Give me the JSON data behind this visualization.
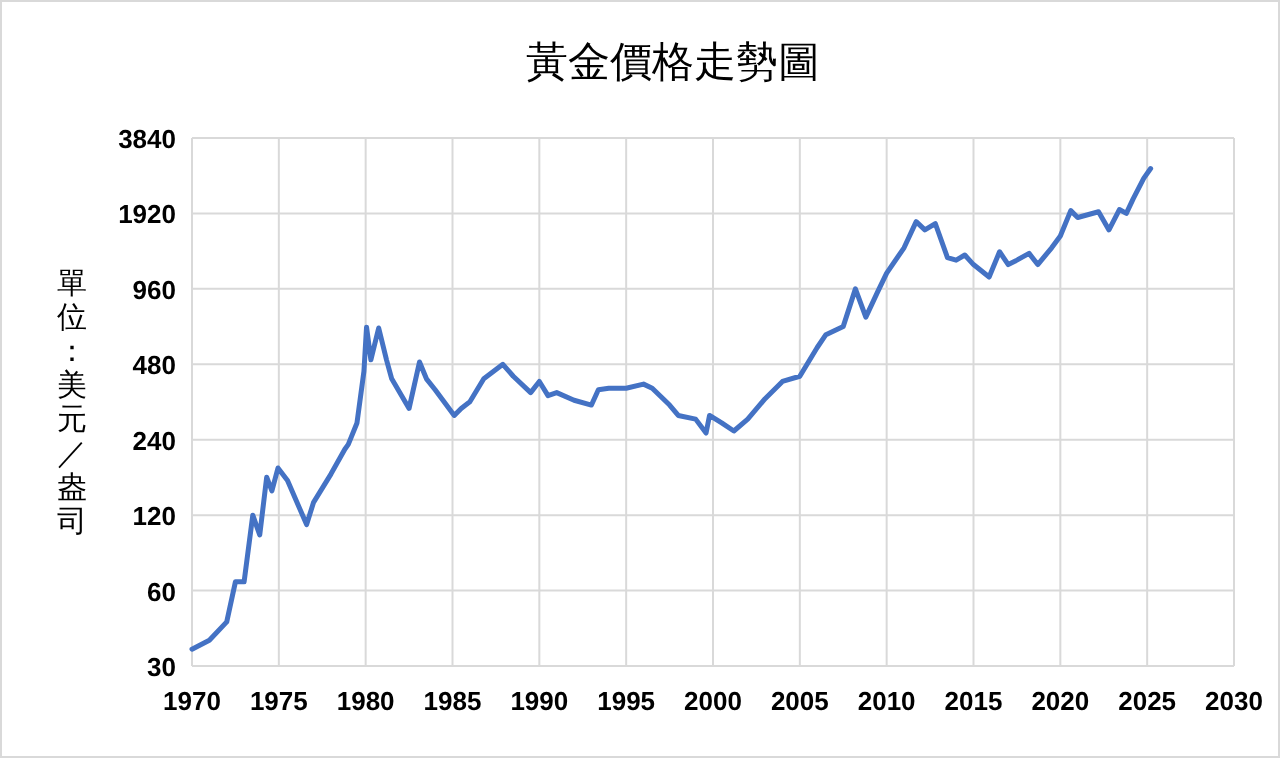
{
  "chart_data": {
    "type": "line",
    "title": "黃金價格走勢圖",
    "ylabel": "單位：美元／盎司",
    "log": "y",
    "grid": true,
    "line_style": "solid",
    "xlim": [
      1970,
      2030
    ],
    "xticks": [
      1970,
      1975,
      1980,
      1985,
      1990,
      1995,
      2000,
      2005,
      2010,
      2015,
      2020,
      2025,
      2030
    ],
    "ylim": [
      30,
      3840
    ],
    "yticks": [
      30,
      60,
      120,
      240,
      480,
      960,
      1920,
      3840
    ],
    "series": [
      {
        "color": "#4472c4",
        "x": [
          1970,
          1971,
          1972,
          1972.5,
          1973,
          1973.5,
          1973.9,
          1974.3,
          1974.6,
          1974.95,
          1975.5,
          1976.6,
          1977,
          1978,
          1978.8,
          1979,
          1979.5,
          1979.9,
          1980.05,
          1980.3,
          1980.75,
          1981.2,
          1981.5,
          1982.5,
          1983.1,
          1983.5,
          1984,
          1985.1,
          1985.5,
          1986,
          1986.8,
          1987.9,
          1988.5,
          1989.5,
          1990,
          1990.5,
          1991,
          1992,
          1993,
          1993.4,
          1994,
          1995,
          1996,
          1996.5,
          1997.5,
          1998,
          1999,
          1999.6,
          1999.8,
          2000.5,
          2001.2,
          2002,
          2003,
          2004,
          2005,
          2006,
          2006.5,
          2007.5,
          2008.2,
          2008.8,
          2009.5,
          2010,
          2011,
          2011.7,
          2012.2,
          2012.8,
          2013.5,
          2014,
          2014.5,
          2015,
          2015.9,
          2016.5,
          2017,
          2017.5,
          2018.2,
          2018.7,
          2019.5,
          2020,
          2020.6,
          2021,
          2022.2,
          2022.8,
          2023.4,
          2023.8,
          2024.2,
          2024.8,
          2025.2
        ],
        "values": [
          35,
          38,
          45,
          65,
          65,
          120,
          100,
          170,
          150,
          185,
          165,
          110,
          135,
          175,
          220,
          230,
          280,
          450,
          675,
          500,
          670,
          500,
          420,
          320,
          490,
          420,
          380,
          300,
          320,
          340,
          420,
          480,
          430,
          370,
          410,
          360,
          370,
          345,
          330,
          380,
          385,
          385,
          400,
          385,
          330,
          300,
          290,
          255,
          300,
          280,
          260,
          290,
          350,
          410,
          430,
          560,
          630,
          680,
          960,
          740,
          940,
          1110,
          1400,
          1780,
          1650,
          1750,
          1280,
          1250,
          1310,
          1200,
          1070,
          1350,
          1200,
          1250,
          1330,
          1200,
          1400,
          1560,
          1970,
          1850,
          1950,
          1650,
          1990,
          1920,
          2200,
          2650,
          2900
        ]
      }
    ]
  }
}
